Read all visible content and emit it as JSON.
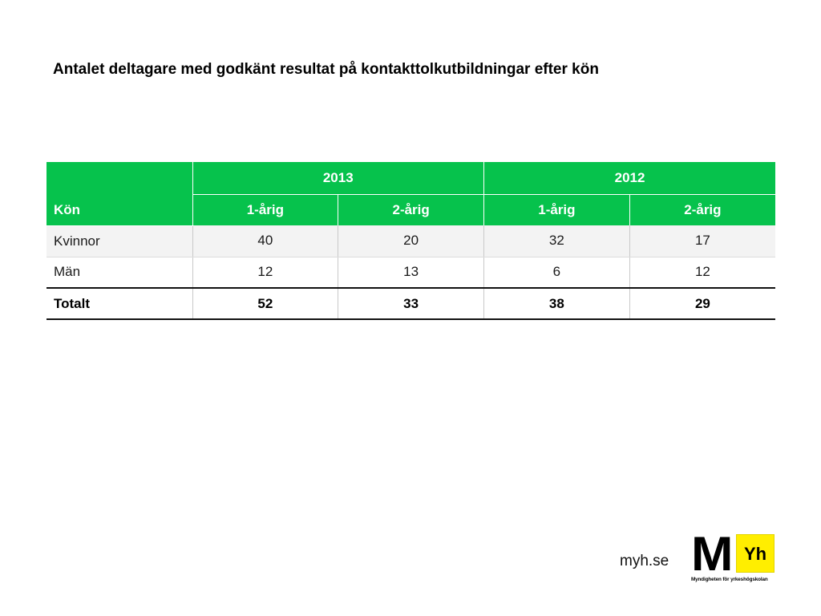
{
  "slide": {
    "title": "Antalet deltagare med godkänt resultat på kontakttolkutbildningar efter kön"
  },
  "chart_data": {
    "type": "table",
    "title": "Antalet deltagare med godkänt resultat på kontakttolkutbildningar efter kön",
    "row_header": "Kön",
    "years": [
      "2013",
      "2012"
    ],
    "subcolumns": [
      "1-årig",
      "2-årig",
      "1-årig",
      "2-årig"
    ],
    "rows": [
      {
        "label": "Kvinnor",
        "values": [
          "40",
          "20",
          "32",
          "17"
        ]
      },
      {
        "label": "Män",
        "values": [
          "12",
          "13",
          "6",
          "12"
        ]
      }
    ],
    "total": {
      "label": "Totalt",
      "values": [
        "52",
        "33",
        "38",
        "29"
      ]
    }
  },
  "footer": {
    "url": "myh.se",
    "logo": {
      "m": "M",
      "yh": "Yh",
      "subtitle": "Myndigheten för yrkeshögskolan"
    }
  },
  "colors": {
    "header_green": "#06c24c",
    "logo_yellow": "#ffee00"
  }
}
